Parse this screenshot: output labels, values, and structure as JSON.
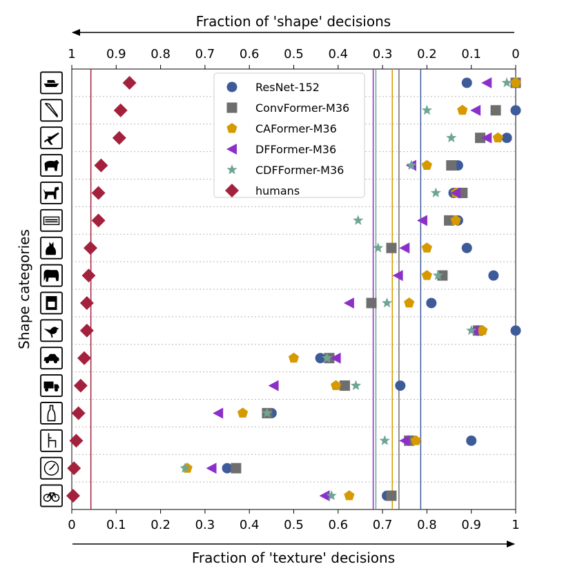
{
  "chart_data": {
    "type": "scatter",
    "top_axis_title": "Fraction of 'shape' decisions",
    "bottom_axis_title": "Fraction of 'texture' decisions",
    "ylabel": "Shape categories",
    "xlim": [
      0,
      1
    ],
    "bottom_ticks": [
      "0",
      "0.1",
      "0.2",
      "0.3",
      "0.4",
      "0.5",
      "0.6",
      "0.7",
      "0.8",
      "0.9",
      "1"
    ],
    "top_ticks": [
      "1",
      "0.9",
      "0.8",
      "0.7",
      "0.6",
      "0.5",
      "0.4",
      "0.3",
      "0.2",
      "0.1",
      "0"
    ],
    "categories": [
      "boat",
      "knife",
      "airplane",
      "bear",
      "dog",
      "keyboard",
      "cat",
      "elephant",
      "oven",
      "bird",
      "car",
      "truck",
      "bottle",
      "chair",
      "clock",
      "bicycle"
    ],
    "legend_position": "upper-center",
    "series": [
      {
        "name": "ResNet-152",
        "marker": "circle",
        "color": "#3d5a99",
        "values": [
          0.89,
          1.0,
          0.98,
          0.87,
          0.86,
          0.87,
          0.89,
          0.95,
          0.81,
          1.0,
          0.56,
          0.74,
          0.45,
          0.9,
          0.35,
          0.71
        ],
        "mean": 0.786
      },
      {
        "name": "ConvFormer-M36",
        "marker": "square",
        "color": "#6e6e6e",
        "values": [
          1.0,
          0.955,
          0.92,
          0.855,
          0.88,
          0.85,
          0.72,
          0.835,
          0.675,
          0.915,
          0.58,
          0.615,
          0.44,
          0.76,
          0.37,
          0.72
        ],
        "mean": 0.737
      },
      {
        "name": "CAFormer-M36",
        "marker": "pentagon",
        "color": "#d69a00",
        "values": [
          1.0,
          0.88,
          0.96,
          0.8,
          0.865,
          0.865,
          0.8,
          0.8,
          0.76,
          0.925,
          0.5,
          0.595,
          0.385,
          0.775,
          0.26,
          0.625
        ],
        "mean": 0.722
      },
      {
        "name": "DFFormer-M36",
        "marker": "triangle-left",
        "color": "#8b2fc9",
        "values": [
          0.935,
          0.91,
          0.935,
          0.765,
          0.865,
          0.79,
          0.75,
          0.735,
          0.625,
          0.905,
          0.595,
          0.455,
          0.33,
          0.75,
          0.315,
          0.57
        ],
        "mean": 0.679
      },
      {
        "name": "CDFFormer-M36",
        "marker": "star",
        "color": "#6fa596",
        "values": [
          0.98,
          0.8,
          0.855,
          0.765,
          0.82,
          0.645,
          0.69,
          0.825,
          0.71,
          0.9,
          0.575,
          0.64,
          0.44,
          0.705,
          0.255,
          0.585
        ],
        "mean": 0.685
      },
      {
        "name": "humans",
        "marker": "diamond",
        "color": "#a3213d",
        "values": [
          0.13,
          0.11,
          0.107,
          0.066,
          0.06,
          0.06,
          0.042,
          0.038,
          0.034,
          0.034,
          0.028,
          0.02,
          0.015,
          0.01,
          0.005,
          0.003
        ],
        "mean": 0.043
      }
    ]
  }
}
